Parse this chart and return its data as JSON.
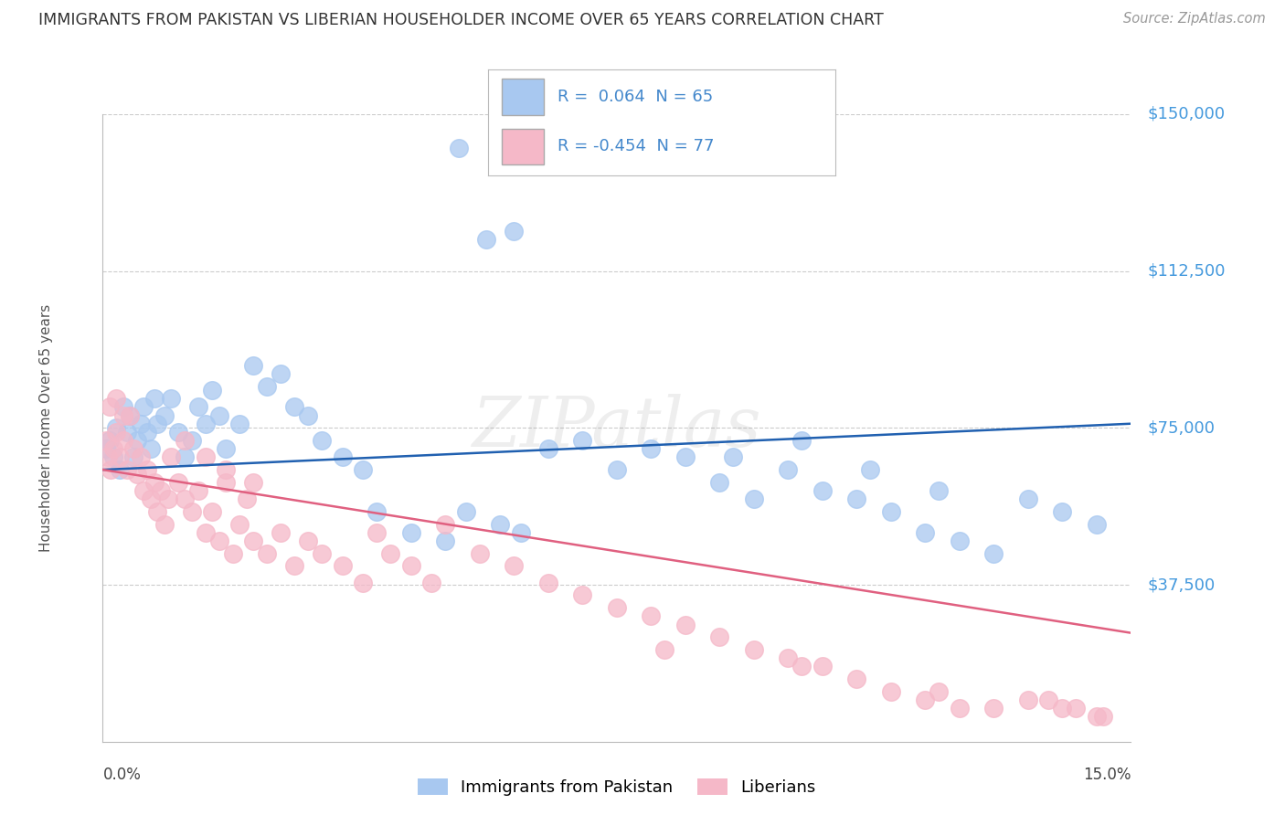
{
  "title": "IMMIGRANTS FROM PAKISTAN VS LIBERIAN HOUSEHOLDER INCOME OVER 65 YEARS CORRELATION CHART",
  "source": "Source: ZipAtlas.com",
  "ylabel": "Householder Income Over 65 years",
  "xmin": 0.0,
  "xmax": 15.0,
  "ymin": 0,
  "ymax": 150000,
  "yticks": [
    0,
    37500,
    75000,
    112500,
    150000
  ],
  "ytick_labels": [
    "",
    "$37,500",
    "$75,000",
    "$112,500",
    "$150,000"
  ],
  "blue_R": 0.064,
  "blue_N": 65,
  "pink_R": -0.454,
  "pink_N": 77,
  "blue_label": "Immigrants from Pakistan",
  "pink_label": "Liberians",
  "blue_color": "#A8C8F0",
  "pink_color": "#F5B8C8",
  "blue_line_color": "#2060B0",
  "pink_line_color": "#E06080",
  "title_color": "#333333",
  "axis_label_color": "#4499DD",
  "legend_text_color": "#4488CC",
  "blue_line_y0": 65000,
  "blue_line_y1": 76000,
  "pink_line_y0": 65000,
  "pink_line_y1": 26000,
  "blue_dots_x": [
    0.05,
    0.1,
    0.15,
    0.2,
    0.25,
    0.3,
    0.35,
    0.4,
    0.45,
    0.5,
    0.55,
    0.6,
    0.65,
    0.7,
    0.75,
    0.8,
    0.9,
    1.0,
    1.1,
    1.2,
    1.3,
    1.4,
    1.5,
    1.6,
    1.7,
    1.8,
    2.0,
    2.2,
    2.4,
    2.6,
    2.8,
    3.0,
    3.2,
    3.5,
    3.8,
    4.0,
    4.5,
    5.0,
    5.2,
    5.6,
    6.0,
    6.5,
    7.0,
    7.5,
    8.5,
    9.0,
    9.5,
    10.0,
    10.5,
    11.0,
    11.5,
    12.0,
    12.5,
    13.0,
    5.3,
    5.8,
    6.1,
    8.0,
    9.2,
    10.2,
    11.2,
    12.2,
    13.5,
    14.0,
    14.5
  ],
  "blue_dots_y": [
    70000,
    72000,
    68000,
    75000,
    65000,
    80000,
    74000,
    78000,
    68000,
    72000,
    76000,
    80000,
    74000,
    70000,
    82000,
    76000,
    78000,
    82000,
    74000,
    68000,
    72000,
    80000,
    76000,
    84000,
    78000,
    70000,
    76000,
    90000,
    85000,
    88000,
    80000,
    78000,
    72000,
    68000,
    65000,
    55000,
    50000,
    48000,
    142000,
    120000,
    122000,
    70000,
    72000,
    65000,
    68000,
    62000,
    58000,
    65000,
    60000,
    58000,
    55000,
    50000,
    48000,
    45000,
    55000,
    52000,
    50000,
    70000,
    68000,
    72000,
    65000,
    60000,
    58000,
    55000,
    52000
  ],
  "pink_dots_x": [
    0.05,
    0.08,
    0.12,
    0.15,
    0.2,
    0.25,
    0.3,
    0.35,
    0.4,
    0.45,
    0.5,
    0.55,
    0.6,
    0.65,
    0.7,
    0.75,
    0.8,
    0.85,
    0.9,
    0.95,
    1.0,
    1.1,
    1.2,
    1.3,
    1.4,
    1.5,
    1.6,
    1.7,
    1.8,
    1.9,
    2.0,
    2.1,
    2.2,
    2.4,
    2.6,
    2.8,
    3.0,
    3.2,
    3.5,
    3.8,
    4.0,
    4.2,
    4.5,
    4.8,
    5.0,
    5.5,
    6.0,
    6.5,
    7.0,
    7.5,
    8.0,
    8.5,
    9.0,
    9.5,
    10.0,
    10.5,
    11.0,
    11.5,
    12.0,
    12.5,
    13.0,
    13.5,
    14.0,
    14.5,
    8.2,
    10.2,
    12.2,
    13.8,
    14.2,
    14.6,
    0.1,
    0.2,
    0.3,
    1.2,
    1.5,
    1.8,
    2.2
  ],
  "pink_dots_y": [
    72000,
    68000,
    65000,
    70000,
    74000,
    68000,
    72000,
    65000,
    78000,
    70000,
    64000,
    68000,
    60000,
    65000,
    58000,
    62000,
    55000,
    60000,
    52000,
    58000,
    68000,
    62000,
    58000,
    55000,
    60000,
    50000,
    55000,
    48000,
    62000,
    45000,
    52000,
    58000,
    48000,
    45000,
    50000,
    42000,
    48000,
    45000,
    42000,
    38000,
    50000,
    45000,
    42000,
    38000,
    52000,
    45000,
    42000,
    38000,
    35000,
    32000,
    30000,
    28000,
    25000,
    22000,
    20000,
    18000,
    15000,
    12000,
    10000,
    8000,
    8000,
    10000,
    8000,
    6000,
    22000,
    18000,
    12000,
    10000,
    8000,
    6000,
    80000,
    82000,
    78000,
    72000,
    68000,
    65000,
    62000
  ]
}
